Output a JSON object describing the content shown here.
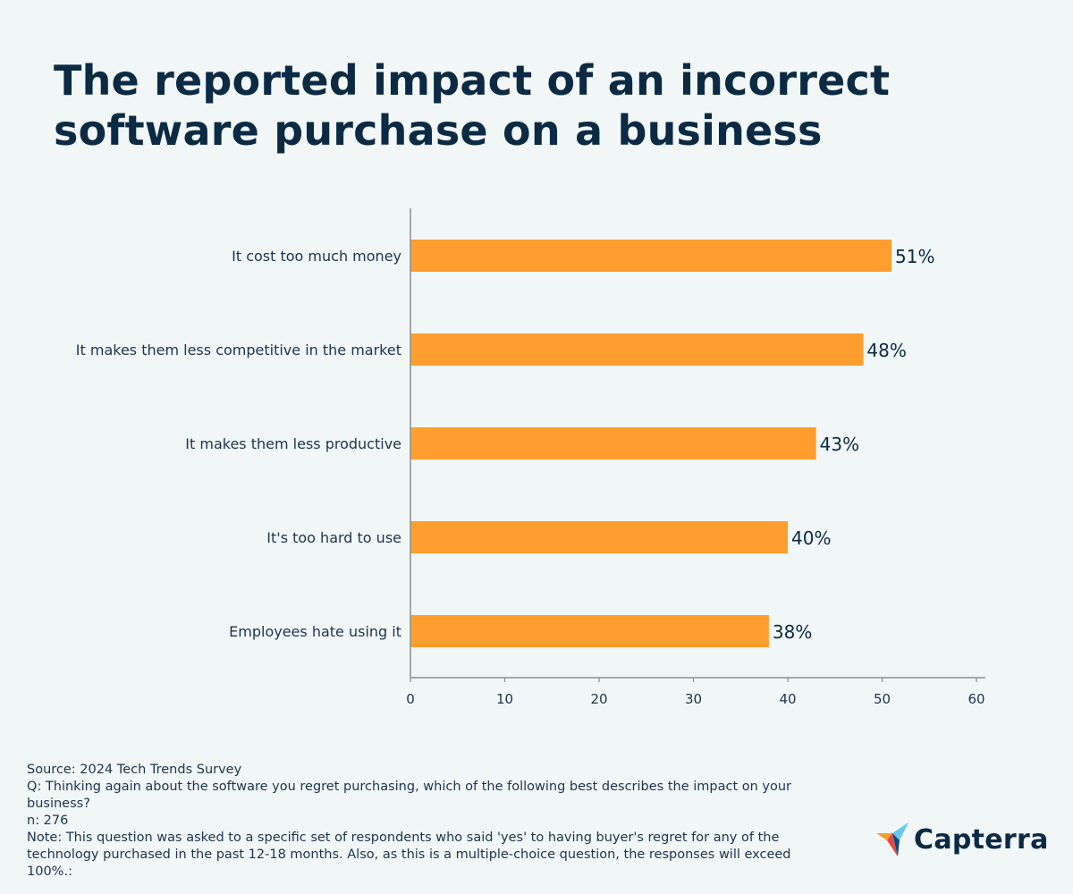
{
  "title": {
    "line1": "The reported impact of an incorrect",
    "line2": "software purchase on a business"
  },
  "chart_data": {
    "type": "bar",
    "orientation": "horizontal",
    "categories": [
      "It cost too much money",
      "It makes them less competitive in the market",
      "It makes them less productive",
      "It's too hard to use",
      "Employees hate using it"
    ],
    "values": [
      51,
      48,
      43,
      40,
      38
    ],
    "value_labels": [
      "51%",
      "48%",
      "43%",
      "40%",
      "38%"
    ],
    "xlim": [
      0,
      60
    ],
    "xticks": [
      0,
      10,
      20,
      30,
      40,
      50,
      60
    ],
    "xlabel": "",
    "ylabel": "",
    "bar_color": "#ff9d2e",
    "grid": false
  },
  "footer": {
    "source": "Source: 2024 Tech Trends Survey",
    "question": "Q: Thinking again about the software you regret purchasing, which of the following best describes the impact on your business?",
    "n": "n: 276",
    "note": "Note: This question was asked to a specific set of respondents who said 'yes' to having buyer's regret for any of the technology purchased in the past 12-18 months. Also, as this is a multiple-choice question, the responses will exceed 100%.:"
  },
  "logo": {
    "text": "Capterra",
    "icon": "capterra-logo-icon",
    "colors": [
      "#ff9d28",
      "#68c5ed",
      "#044d80",
      "#e54747"
    ]
  }
}
